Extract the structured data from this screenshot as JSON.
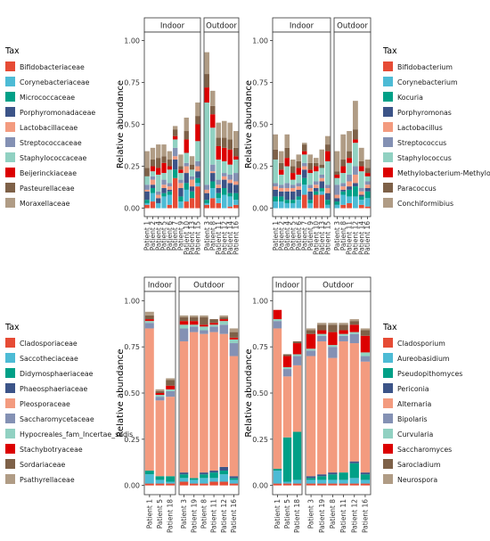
{
  "palette": [
    "#e64b35",
    "#4dbbd5",
    "#00a087",
    "#3c5488",
    "#f39b7f",
    "#8491b4",
    "#91d1c2",
    "#dc0000",
    "#7e6148",
    "#b09c85"
  ],
  "chart_data": [
    {
      "type": "bar",
      "stacked": true,
      "ylabel": "Relative abundance",
      "ylim": [
        0,
        1
      ],
      "yticks": [
        0,
        0.25,
        0.5,
        0.75,
        1
      ],
      "ytick_labels": [
        "0.00",
        "0.25",
        "0.50",
        "0.75",
        "1.00"
      ],
      "legend": {
        "title": "Tax",
        "position": "left",
        "entries": [
          "Bifidobacteriaceae",
          "Corynebacteriaceae",
          "Micrococcaceae",
          "Porphyromonadaceae",
          "Lactobacillaceae",
          "Streptococcaceae",
          "Staphylococcaceae",
          "Beijerinckiaceae",
          "Pasteurellaceae",
          "Moraxellaceae"
        ]
      },
      "facets": [
        {
          "label": "Indoor",
          "categories": [
            "Patient 1",
            "Patient 2",
            "Patient 4",
            "Patient 5",
            "Patient 6",
            "Patient 7",
            "Patient 9",
            "Patient 10",
            "Patient 13",
            "Patient 15"
          ],
          "stacks": [
            [
              0.02,
              0.04,
              0,
              0,
              0.02,
              0.18,
              0,
              0.04,
              0.06,
              0.13
            ],
            [
              0.01,
              0.05,
              0.03,
              0.07,
              0.06,
              0,
              0.04,
              0.07,
              0,
              0.02
            ],
            [
              0.02,
              0.03,
              0,
              0.02,
              0.02,
              0.05,
              0.03,
              0.04,
              0.04,
              0.03
            ],
            [
              0.05,
              0.02,
              0.03,
              0.03,
              0.01,
              0.06,
              0.05,
              0.06,
              0.03,
              0.04
            ],
            [
              0.01,
              0.03,
              0.02,
              0.02,
              0.02,
              0.02,
              0.03,
              0.04,
              0.04,
              0.03
            ],
            [
              0.03,
              0.02,
              0.02,
              0.03,
              0.02,
              0.05,
              0.02,
              0.02,
              0.02,
              0.03
            ],
            [
              0.05,
              0.03,
              0.1,
              0.04,
              0.08,
              0.05,
              0.04,
              0.06,
              0.04,
              0.12
            ],
            [
              0,
              0.03,
              0.04,
              0.06,
              0.02,
              0.02,
              0.02,
              0.08,
              0,
              0.1
            ],
            [
              0.05,
              0.04,
              0.06,
              0.04,
              0.04,
              0.04,
              0.02,
              0.05,
              0.03,
              0.05
            ],
            [
              0.1,
              0.07,
              0.08,
              0.07,
              0.05,
              0.02,
              0.07,
              0.08,
              0.05,
              0.08
            ]
          ]
        },
        {
          "label": "Outdoor",
          "categories": [
            "Patient 3",
            "Patient 8",
            "Patient 11",
            "Patient 12",
            "Patient 14",
            "Patient 16"
          ],
          "stacks": [
            [
              0.02,
              0.06,
              0.03,
              0,
              0.01,
              0.02
            ],
            [
              0.01,
              0.06,
              0.03,
              0.08,
              0.06,
              0.03
            ],
            [
              0.02,
              0.04,
              0.03,
              0.04,
              0.02,
              0.04
            ],
            [
              0.04,
              0.05,
              0.03,
              0.05,
              0.06,
              0.05
            ],
            [
              0.02,
              0.01,
              0.02,
              0.02,
              0.02,
              0.02
            ],
            [
              0.03,
              0.04,
              0.03,
              0.02,
              0.03,
              0.05
            ],
            [
              0.49,
              0.22,
              0.12,
              0.07,
              0.06,
              0.08
            ],
            [
              0.09,
              0.08,
              0.08,
              0.08,
              0.09,
              0.02
            ],
            [
              0.08,
              0.05,
              0.05,
              0.06,
              0.06,
              0.05
            ],
            [
              0.13,
              0.09,
              0.09,
              0.1,
              0.1,
              0.1
            ]
          ]
        }
      ]
    },
    {
      "type": "bar",
      "stacked": true,
      "ylabel": "Relative abundance",
      "ylim": [
        0,
        1
      ],
      "yticks": [
        0,
        0.25,
        0.5,
        0.75,
        1
      ],
      "ytick_labels": [
        "0.00",
        "0.25",
        "0.50",
        "0.75",
        "1.00"
      ],
      "legend": {
        "title": "Tax",
        "position": "right",
        "entries": [
          "Bifidobacterium",
          "Corynebacterium",
          "Kocuria",
          "Porphyromonas",
          "Lactobacillus",
          "Streptococcus",
          "Staphylococcus",
          "Methylobacterium-Methylorubrum",
          "Paracoccus",
          "Conchiformibius"
        ]
      },
      "facets": [
        {
          "label": "Indoor",
          "categories": [
            "Patient 1",
            "Patient 2",
            "Patient 4",
            "Patient 5",
            "Patient 6",
            "Patient 7",
            "Patient 9",
            "Patient 10",
            "Patient 13",
            "Patient 15"
          ],
          "stacks": [
            [
              0,
              0,
              0,
              0,
              0,
              0.08,
              0,
              0.08,
              0.08,
              0
            ],
            [
              0.04,
              0.04,
              0.03,
              0.03,
              0.05,
              0.06,
              0.03,
              0,
              0.02,
              0.02
            ],
            [
              0.03,
              0.03,
              0.02,
              0.02,
              0.02,
              0.04,
              0.02,
              0.02,
              0.02,
              0.03
            ],
            [
              0.04,
              0.03,
              0.05,
              0.05,
              0.04,
              0.05,
              0.05,
              0.02,
              0.04,
              0.04
            ],
            [
              0.02,
              0.02,
              0.02,
              0.02,
              0.02,
              0.02,
              0.02,
              0.02,
              0.02,
              0.03
            ],
            [
              0.02,
              0.02,
              0.03,
              0.02,
              0.02,
              0.02,
              0.02,
              0.02,
              0.02,
              0.02
            ],
            [
              0.14,
              0.06,
              0.1,
              0.03,
              0.05,
              0.05,
              0.07,
              0.06,
              0.04,
              0.14
            ],
            [
              0,
              0.03,
              0.05,
              0.04,
              0.04,
              0.02,
              0.02,
              0.03,
              0,
              0.06
            ],
            [
              0.06,
              0.04,
              0.06,
              0.04,
              0.04,
              0.04,
              0.04,
              0.02,
              0.02,
              0.04
            ],
            [
              0.09,
              0.07,
              0.08,
              0.04,
              0.04,
              0.01,
              0.05,
              0.03,
              0.09,
              0.05
            ]
          ]
        },
        {
          "label": "Outdoor",
          "categories": [
            "Patient 3",
            "Patient 8",
            "Patient 11",
            "Patient 12",
            "Patient 14",
            "Patient 16"
          ],
          "stacks": [
            [
              0,
              0.02,
              0.03,
              0,
              0.02,
              0.01
            ],
            [
              0.02,
              0.06,
              0.04,
              0.07,
              0.03,
              0.05
            ],
            [
              0.02,
              0.02,
              0.04,
              0.06,
              0.02,
              0.04
            ],
            [
              0.02,
              0.01,
              0.02,
              0.02,
              0.01,
              0.02
            ],
            [
              0.02,
              0.02,
              0.03,
              0.05,
              0.02,
              0.02
            ],
            [
              0.06,
              0.02,
              0.04,
              0.05,
              0.02,
              0.02
            ],
            [
              0.04,
              0.06,
              0.07,
              0.14,
              0.1,
              0.03
            ],
            [
              0.02,
              0.04,
              0.03,
              0.02,
              0.03,
              0.02
            ],
            [
              0.02,
              0.04,
              0.04,
              0.06,
              0.03,
              0.03
            ],
            [
              0.12,
              0.15,
              0.12,
              0.17,
              0.08,
              0.05
            ]
          ]
        }
      ]
    },
    {
      "type": "bar",
      "stacked": true,
      "ylabel": "Relative abundance",
      "ylim": [
        0,
        1
      ],
      "yticks": [
        0,
        0.25,
        0.5,
        0.75,
        1
      ],
      "ytick_labels": [
        "0.00",
        "0.25",
        "0.50",
        "0.75",
        "1.00"
      ],
      "legend": {
        "title": "Tax",
        "position": "left",
        "entries": [
          "Cladosporiaceae",
          "Saccotheciaceae",
          "Didymosphaeriaceae",
          "Phaeosphaeriaceae",
          "Pleosporaceae",
          "Saccharomycetaceae",
          "Hypocreales_fam_Incertae_sedis",
          "Stachybotryaceae",
          "Sordariaceae",
          "Psathyrellaceae"
        ]
      },
      "facets": [
        {
          "label": "Indoor",
          "categories": [
            "Patient 1",
            "Patient 5",
            "Patient 18"
          ],
          "stacks": [
            [
              0.01,
              0.01,
              0.01
            ],
            [
              0.05,
              0.02,
              0.01
            ],
            [
              0.02,
              0.02,
              0.03
            ],
            [
              0,
              0,
              0
            ],
            [
              0.77,
              0.41,
              0.43
            ],
            [
              0.03,
              0.02,
              0.03
            ],
            [
              0.01,
              0.01,
              0.01
            ],
            [
              0.01,
              0.01,
              0.02
            ],
            [
              0.02,
              0.01,
              0.03
            ],
            [
              0.02,
              0.01,
              0.01
            ]
          ]
        },
        {
          "label": "Outdoor",
          "categories": [
            "Patient 3",
            "Patient 19",
            "Patient 8",
            "Patient 11",
            "Patient 12",
            "Patient 16"
          ],
          "stacks": [
            [
              0.02,
              0.01,
              0.01,
              0.02,
              0.02,
              0.01
            ],
            [
              0.02,
              0.02,
              0.03,
              0.02,
              0.04,
              0.02
            ],
            [
              0.02,
              0.01,
              0.02,
              0.03,
              0.02,
              0.01
            ],
            [
              0.01,
              0,
              0.01,
              0.01,
              0.02,
              0.01
            ],
            [
              0.71,
              0.79,
              0.75,
              0.75,
              0.72,
              0.65
            ],
            [
              0.07,
              0.03,
              0.02,
              0.03,
              0.05,
              0.07
            ],
            [
              0.02,
              0.01,
              0.02,
              0.01,
              0.02,
              0.02
            ],
            [
              0.02,
              0.02,
              0.01,
              0.01,
              0.01,
              0.01
            ],
            [
              0.02,
              0.02,
              0.04,
              0.02,
              0.01,
              0.03
            ],
            [
              0.01,
              0.01,
              0.01,
              0,
              0.01,
              0.02
            ]
          ]
        }
      ]
    },
    {
      "type": "bar",
      "stacked": true,
      "ylabel": "Relative abundance",
      "ylim": [
        0,
        1
      ],
      "yticks": [
        0,
        0.25,
        0.5,
        0.75,
        1
      ],
      "ytick_labels": [
        "0.00",
        "0.25",
        "0.50",
        "0.75",
        "1.00"
      ],
      "legend": {
        "title": "Tax",
        "position": "right",
        "entries": [
          "Cladosporium",
          "Aureobasidium",
          "Pseudopithomyces",
          "Periconia",
          "Alternaria",
          "Bipolaris",
          "Curvularia",
          "Saccharomyces",
          "Sarocladium",
          "Neurospora"
        ]
      },
      "facets": [
        {
          "label": "Indoor",
          "categories": [
            "Patient 1",
            "Patient 5",
            "Patient 18"
          ],
          "stacks": [
            [
              0.01,
              0.01,
              0.01
            ],
            [
              0.07,
              0.01,
              0.02
            ],
            [
              0.01,
              0.24,
              0.26
            ],
            [
              0,
              0,
              0
            ],
            [
              0.76,
              0.33,
              0.36
            ],
            [
              0.04,
              0.04,
              0.05
            ],
            [
              0.01,
              0.01,
              0.01
            ],
            [
              0.05,
              0.06,
              0.06
            ],
            [
              0,
              0.01,
              0.01
            ],
            [
              0,
              0,
              0
            ]
          ]
        },
        {
          "label": "Outdoor",
          "categories": [
            "Patient 3",
            "Patient 19",
            "Patient 8",
            "Patient 11",
            "Patient 12",
            "Patient 16"
          ],
          "stacks": [
            [
              0.01,
              0.01,
              0.01,
              0.01,
              0.01,
              0.01
            ],
            [
              0.02,
              0.02,
              0.02,
              0.02,
              0.03,
              0.02
            ],
            [
              0.01,
              0.02,
              0.03,
              0.04,
              0.08,
              0.03
            ],
            [
              0.01,
              0.01,
              0.01,
              0,
              0.01,
              0.01
            ],
            [
              0.65,
              0.72,
              0.62,
              0.71,
              0.64,
              0.6
            ],
            [
              0.03,
              0.03,
              0.06,
              0.03,
              0.05,
              0.03
            ],
            [
              0.01,
              0.01,
              0.01,
              0.01,
              0.01,
              0.02
            ],
            [
              0.08,
              0.02,
              0.07,
              0.02,
              0.04,
              0.09
            ],
            [
              0.02,
              0.03,
              0.04,
              0.03,
              0.02,
              0.03
            ],
            [
              0.01,
              0.01,
              0.01,
              0.01,
              0.01,
              0.01
            ]
          ]
        }
      ]
    }
  ]
}
